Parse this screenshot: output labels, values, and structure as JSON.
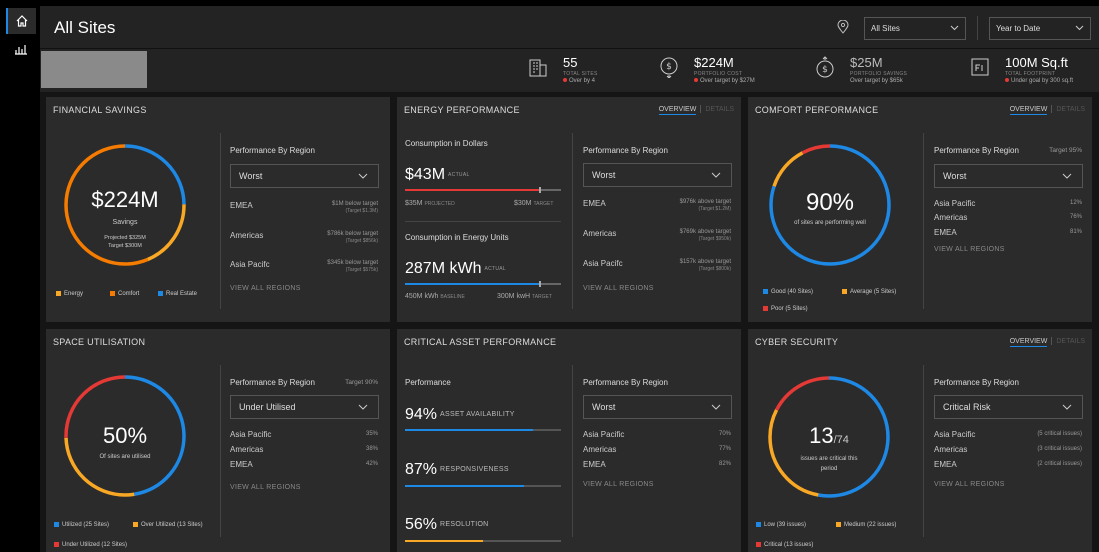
{
  "header": {
    "title": "All Sites",
    "site_select": "All Sites",
    "period_select": "Year to Date"
  },
  "kpis": [
    {
      "icon": "building-icon",
      "value": "55",
      "label": "TOTAL SITES",
      "sub": "Over by 4",
      "alert": true
    },
    {
      "icon": "dollar-down-icon",
      "value": "$224M",
      "label": "PORTFOLIO COST",
      "sub": "Over target by $27M",
      "alert": true
    },
    {
      "icon": "dollar-up-icon",
      "value": "$25M",
      "label": "PORTFOLIO SAVINGS",
      "sub": "Over target by $65k",
      "alert": false
    },
    {
      "icon": "footprint-icon",
      "value": "100M Sq.ft",
      "label": "TOTAL FOOTPRINT",
      "sub": "Under goal by 300 sq.ft",
      "alert": true
    }
  ],
  "common": {
    "perf_by_region": "Performance By Region",
    "view_all": "VIEW ALL REGIONS",
    "overview": "OVERVIEW",
    "details": "DETAILS"
  },
  "financial": {
    "title": "FINANCIAL SAVINGS",
    "donut_value": "$224M",
    "donut_sub": "Savings",
    "projected": "Projected $325M",
    "target": "Target $300M",
    "dropdown": "Worst",
    "regions": [
      {
        "name": "EMEA",
        "value": "$1M below target",
        "target": "(Target $1.3M)"
      },
      {
        "name": "Americas",
        "value": "$786k below target",
        "target": "(Target $856k)"
      },
      {
        "name": "Asia Pacifc",
        "value": "$345k below target",
        "target": "(Target $575k)"
      }
    ],
    "legend": [
      "Energy",
      "Comfort",
      "Real Estate"
    ]
  },
  "energy": {
    "title": "ENERGY PERFORMANCE",
    "dollars_title": "Consumption in Dollars",
    "dollars_value": "$43M",
    "actual": "ACTUAL",
    "dollars_projected": "$35M",
    "projected_label": "PROJECTED",
    "dollars_target": "$30M",
    "target_label": "TARGET",
    "units_title": "Consumption in Energy Units",
    "units_value": "287M kWh",
    "units_baseline": "450M kWh",
    "baseline_label": "BASELINE",
    "units_target": "300M kwH",
    "dropdown": "Worst",
    "regions": [
      {
        "name": "EMEA",
        "value": "$976k above target",
        "target": "(Target $1.2M)"
      },
      {
        "name": "Americas",
        "value": "$769k above target",
        "target": "(Target $950k)"
      },
      {
        "name": "Asia Pacifc",
        "value": "$157k above target",
        "target": "(Target $800k)"
      }
    ]
  },
  "comfort": {
    "title": "COMFORT PERFORMANCE",
    "target": "Target 95%",
    "donut_value": "90%",
    "donut_sub": "of sites are performing well",
    "dropdown": "Worst",
    "regions": [
      {
        "name": "Asia Pacific",
        "value": "12%"
      },
      {
        "name": "Americas",
        "value": "76%"
      },
      {
        "name": "EMEA",
        "value": "81%"
      }
    ],
    "legend": [
      "Good (40 Sites)",
      "Average (5 Sites)",
      "Poor (5 Sites)"
    ]
  },
  "space": {
    "title": "SPACE UTILISATION",
    "target": "Target 90%",
    "donut_value": "50%",
    "donut_sub": "Of sites are utilised",
    "dropdown": "Under Utilised",
    "regions": [
      {
        "name": "Asia Pacific",
        "value": "35%"
      },
      {
        "name": "Americas",
        "value": "38%"
      },
      {
        "name": "EMEA",
        "value": "42%"
      }
    ],
    "legend": [
      "Utilized (25 Sites)",
      "Over Utilized (13 Sites)",
      "Under Utilized (12 Sites)"
    ]
  },
  "critical": {
    "title": "CRITICAL ASSET PERFORMANCE",
    "perf_label": "Performance",
    "metrics": [
      {
        "value": "94%",
        "label": "ASSET AVAILABILITY",
        "fill": 0.82
      },
      {
        "value": "87%",
        "label": "RESPONSIVENESS",
        "fill": 0.76
      },
      {
        "value": "56%",
        "label": "RESOLUTION",
        "fill": 0.5
      }
    ],
    "dropdown": "Worst",
    "regions": [
      {
        "name": "Asia Pacific",
        "value": "70%"
      },
      {
        "name": "Americas",
        "value": "77%"
      },
      {
        "name": "EMEA",
        "value": "82%"
      }
    ]
  },
  "cyber": {
    "title": "CYBER SECURITY",
    "donut_value": "13",
    "donut_total": "/74",
    "donut_sub": "issues are critical this period",
    "dropdown": "Critical Risk",
    "regions": [
      {
        "name": "Asia Pacific",
        "value": "(5 critical issues)"
      },
      {
        "name": "Americas",
        "value": "(3 critical issues)"
      },
      {
        "name": "EMEA",
        "value": "(2 critical issues)"
      }
    ],
    "legend": [
      "Low (39 issues)",
      "Medium (22 issues)",
      "Critical (13 issues)"
    ]
  },
  "colors": {
    "blue": "#1e88e5",
    "orange": "#f57c00",
    "yellow": "#f9a825",
    "red": "#e53935"
  }
}
